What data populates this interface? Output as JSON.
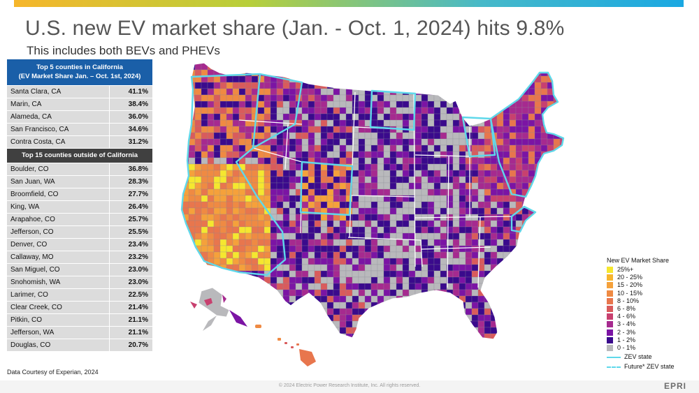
{
  "title": "U.S. new EV market share (Jan. - Oct. 1, 2024) hits 9.8%",
  "subtitle": "This includes both BEVs and PHEVs",
  "ca_table": {
    "header_line1": "Top 5 counties in California",
    "header_line2": "(EV Market Share Jan. – Oct. 1st, 2024)",
    "rows": [
      {
        "county": "Santa Clara, CA",
        "share": "41.1%"
      },
      {
        "county": "Marin, CA",
        "share": "38.4%"
      },
      {
        "county": "Alameda, CA",
        "share": "36.0%"
      },
      {
        "county": "San Francisco, CA",
        "share": "34.6%"
      },
      {
        "county": "Contra Costa, CA",
        "share": "31.2%"
      }
    ]
  },
  "other_table": {
    "header": "Top 15 counties outside of California",
    "rows": [
      {
        "county": "Boulder, CO",
        "share": "36.8%"
      },
      {
        "county": "San Juan, WA",
        "share": "28.3%"
      },
      {
        "county": "Broomfield, CO",
        "share": "27.7%"
      },
      {
        "county": "King, WA",
        "share": "26.4%"
      },
      {
        "county": "Arapahoe, CO",
        "share": "25.7%"
      },
      {
        "county": "Jefferson, CO",
        "share": "25.5%"
      },
      {
        "county": "Denver, CO",
        "share": "23.4%"
      },
      {
        "county": "Callaway, MO",
        "share": "23.2%"
      },
      {
        "county": "San Miguel, CO",
        "share": "23.0%"
      },
      {
        "county": "Snohomish, WA",
        "share": "23.0%"
      },
      {
        "county": "Larimer, CO",
        "share": "22.5%"
      },
      {
        "county": "Clear Creek, CO",
        "share": "21.4%"
      },
      {
        "county": "Pitkin, CO",
        "share": "21.1%"
      },
      {
        "county": "Jefferson, WA",
        "share": "21.1%"
      },
      {
        "county": "Douglas, CO",
        "share": "20.7%"
      }
    ]
  },
  "legend": {
    "title": "New EV Market Share",
    "bins": [
      {
        "label": "25%+",
        "color": "#f5e72f"
      },
      {
        "label": "20 - 25%",
        "color": "#f7b52e"
      },
      {
        "label": "15 - 20%",
        "color": "#f5a13b"
      },
      {
        "label": "10 - 15%",
        "color": "#ef8a43"
      },
      {
        "label": "8 - 10%",
        "color": "#e8764d"
      },
      {
        "label": "6 - 8%",
        "color": "#d95b5c"
      },
      {
        "label": "4 - 6%",
        "color": "#c8406f"
      },
      {
        "label": "3 - 4%",
        "color": "#a62a8f"
      },
      {
        "label": "2 - 3%",
        "color": "#7b14a4"
      },
      {
        "label": "1 - 2%",
        "color": "#3a0a8c"
      },
      {
        "label": "0 - 1%",
        "color": "#b9b9bc"
      }
    ],
    "zev_state": "ZEV state",
    "future_zev_state": "Future* ZEV state",
    "zev_line_color": "#5fd8ea"
  },
  "credit": "Data Courtesy of Experian, 2024",
  "copyright": "© 2024 Electric Power Research Institute, Inc. All rights reserved.",
  "logo": "EPRI"
}
